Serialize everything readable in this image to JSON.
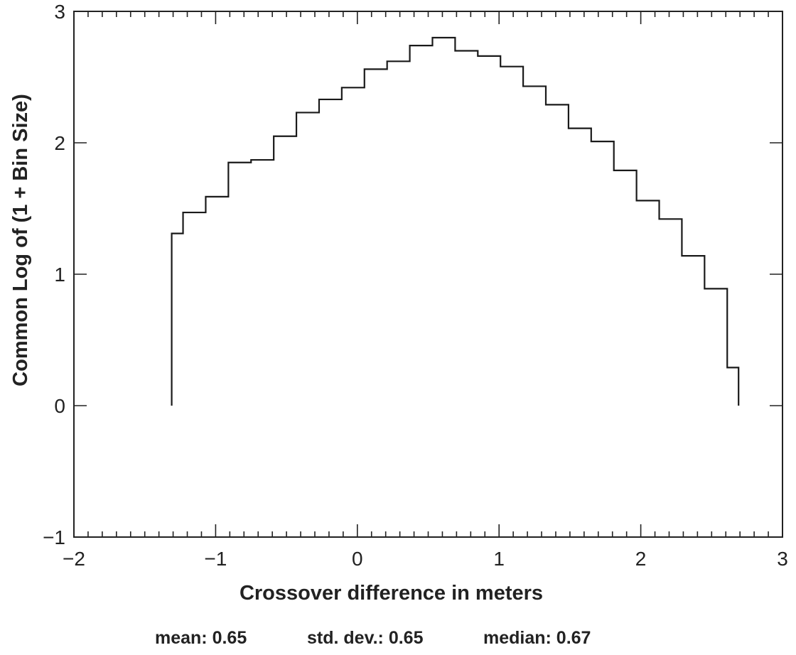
{
  "chart_data": {
    "type": "histogram-step",
    "xlabel": "Crossover difference in meters",
    "ylabel": "Common Log of (1 + Bin Size)",
    "xlim": [
      -2,
      3
    ],
    "ylim": [
      -1,
      3
    ],
    "x_ticks": [
      -2,
      -1,
      0,
      1,
      2,
      3
    ],
    "x_tick_labels": [
      "−2",
      "−1",
      "0",
      "1",
      "2",
      "3"
    ],
    "y_ticks": [
      -1,
      0,
      1,
      2,
      3
    ],
    "y_tick_labels": [
      "−1",
      "0",
      "1",
      "2",
      "3"
    ],
    "grid": false,
    "bin_edges": [
      -1.31,
      -1.23,
      -1.07,
      -0.91,
      -0.75,
      -0.59,
      -0.43,
      -0.27,
      -0.11,
      0.05,
      0.21,
      0.37,
      0.53,
      0.69,
      0.85,
      1.01,
      1.17,
      1.33,
      1.49,
      1.65,
      1.81,
      1.97,
      2.13,
      2.29,
      2.45,
      2.61,
      2.69
    ],
    "values": [
      1.31,
      1.47,
      1.59,
      1.85,
      1.87,
      2.05,
      2.23,
      2.33,
      2.42,
      2.56,
      2.62,
      2.74,
      2.8,
      2.7,
      2.66,
      2.58,
      2.43,
      2.29,
      2.11,
      2.01,
      1.79,
      1.56,
      1.42,
      1.14,
      0.89,
      0.29
    ],
    "line_color": "#1a1a1a"
  },
  "stats": {
    "mean": "mean: 0.65",
    "std_dev": "std. dev.: 0.65",
    "median": "median: 0.67"
  }
}
